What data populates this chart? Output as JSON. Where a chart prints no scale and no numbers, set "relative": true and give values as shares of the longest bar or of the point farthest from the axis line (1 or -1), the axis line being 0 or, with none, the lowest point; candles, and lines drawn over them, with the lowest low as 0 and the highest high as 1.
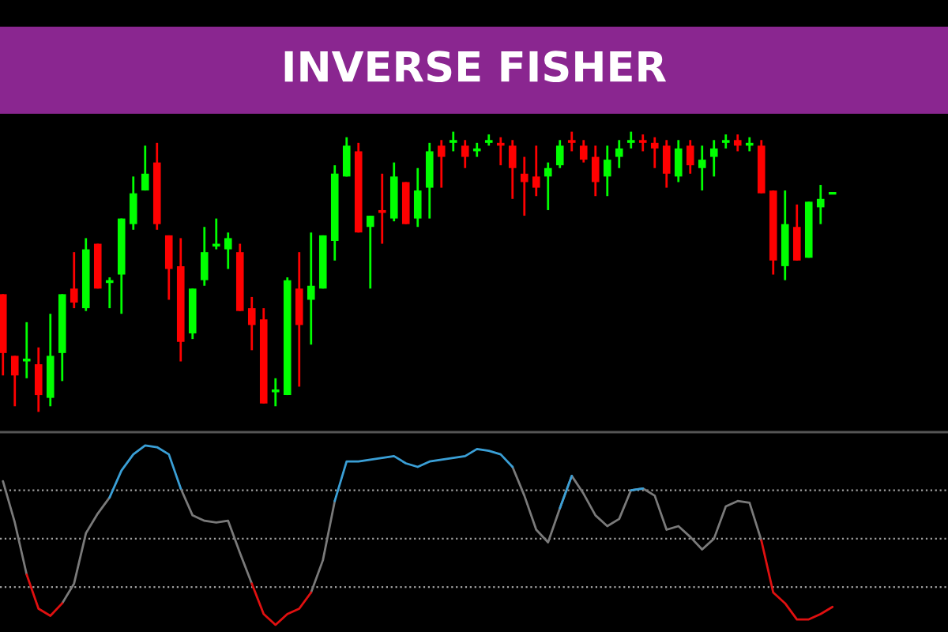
{
  "chart_data": [
    {
      "type": "candlestick",
      "title": "INVERSE FISHER",
      "relative": true,
      "categories": [
        null,
        null,
        null,
        null,
        null,
        null,
        null,
        null,
        null,
        null,
        null,
        null,
        null,
        null,
        null,
        null,
        null,
        null,
        null,
        null,
        null,
        null,
        null,
        null,
        null,
        null,
        null,
        null,
        null,
        null,
        null,
        null,
        null,
        null,
        null,
        null,
        null,
        null,
        null,
        null,
        null,
        null,
        null,
        null,
        null,
        null,
        null,
        null,
        null,
        null,
        null,
        null,
        null,
        null,
        null,
        null,
        null,
        null,
        null,
        null,
        null,
        null,
        null,
        null,
        null,
        null,
        null,
        null,
        null,
        null,
        null
      ],
      "ohlc": [
        [
          0.42,
          0.42,
          0.13,
          0.21
        ],
        [
          0.2,
          0.2,
          0.02,
          0.13
        ],
        [
          0.18,
          0.32,
          0.12,
          0.19
        ],
        [
          0.17,
          0.23,
          0.0,
          0.06
        ],
        [
          0.05,
          0.35,
          0.02,
          0.2
        ],
        [
          0.21,
          0.42,
          0.11,
          0.42
        ],
        [
          0.44,
          0.57,
          0.37,
          0.39
        ],
        [
          0.37,
          0.62,
          0.36,
          0.58
        ],
        [
          0.6,
          0.6,
          0.44,
          0.44
        ],
        [
          0.46,
          0.48,
          0.37,
          0.47
        ],
        [
          0.49,
          0.69,
          0.35,
          0.69
        ],
        [
          0.67,
          0.84,
          0.65,
          0.78
        ],
        [
          0.79,
          0.95,
          0.79,
          0.85
        ],
        [
          0.89,
          0.96,
          0.65,
          0.67
        ],
        [
          0.63,
          0.63,
          0.4,
          0.51
        ],
        [
          0.52,
          0.62,
          0.18,
          0.25
        ],
        [
          0.28,
          0.44,
          0.26,
          0.44
        ],
        [
          0.47,
          0.66,
          0.45,
          0.57
        ],
        [
          0.59,
          0.69,
          0.58,
          0.6
        ],
        [
          0.58,
          0.64,
          0.51,
          0.62
        ],
        [
          0.57,
          0.6,
          0.36,
          0.36
        ],
        [
          0.37,
          0.41,
          0.22,
          0.31
        ],
        [
          0.33,
          0.37,
          0.03,
          0.03
        ],
        [
          0.07,
          0.12,
          0.02,
          0.08
        ],
        [
          0.06,
          0.48,
          0.06,
          0.47
        ],
        [
          0.44,
          0.57,
          0.09,
          0.31
        ],
        [
          0.4,
          0.64,
          0.24,
          0.45
        ],
        [
          0.44,
          0.63,
          0.44,
          0.63
        ],
        [
          0.61,
          0.88,
          0.54,
          0.85
        ],
        [
          0.84,
          0.98,
          0.84,
          0.95
        ],
        [
          0.93,
          0.96,
          0.64,
          0.64
        ],
        [
          0.66,
          0.7,
          0.44,
          0.7
        ],
        [
          0.72,
          0.85,
          0.6,
          0.71
        ],
        [
          0.69,
          0.89,
          0.68,
          0.84
        ],
        [
          0.82,
          0.82,
          0.67,
          0.67
        ],
        [
          0.69,
          0.87,
          0.66,
          0.79
        ],
        [
          0.8,
          0.96,
          0.69,
          0.93
        ],
        [
          0.95,
          0.97,
          0.8,
          0.91
        ],
        [
          0.96,
          1.0,
          0.93,
          0.97
        ],
        [
          0.95,
          0.97,
          0.87,
          0.91
        ],
        [
          0.93,
          0.96,
          0.91,
          0.94
        ],
        [
          0.96,
          0.99,
          0.95,
          0.97
        ],
        [
          0.96,
          0.98,
          0.88,
          0.95
        ],
        [
          0.95,
          0.97,
          0.76,
          0.87
        ],
        [
          0.85,
          0.91,
          0.7,
          0.82
        ],
        [
          0.84,
          0.95,
          0.77,
          0.8
        ],
        [
          0.84,
          0.89,
          0.72,
          0.87
        ],
        [
          0.88,
          0.97,
          0.87,
          0.95
        ],
        [
          0.97,
          1.0,
          0.93,
          0.96
        ],
        [
          0.95,
          0.97,
          0.89,
          0.9
        ],
        [
          0.91,
          0.95,
          0.77,
          0.82
        ],
        [
          0.84,
          0.95,
          0.77,
          0.9
        ],
        [
          0.91,
          0.97,
          0.87,
          0.94
        ],
        [
          0.96,
          1.0,
          0.94,
          0.97
        ],
        [
          0.97,
          0.99,
          0.93,
          0.96
        ],
        [
          0.96,
          0.98,
          0.87,
          0.94
        ],
        [
          0.95,
          0.97,
          0.8,
          0.85
        ],
        [
          0.84,
          0.97,
          0.82,
          0.94
        ],
        [
          0.95,
          0.97,
          0.85,
          0.88
        ],
        [
          0.87,
          0.95,
          0.79,
          0.9
        ],
        [
          0.91,
          0.97,
          0.84,
          0.94
        ],
        [
          0.96,
          0.99,
          0.94,
          0.97
        ],
        [
          0.97,
          0.99,
          0.93,
          0.95
        ],
        [
          0.95,
          0.98,
          0.93,
          0.96
        ],
        [
          0.95,
          0.97,
          0.78,
          0.78
        ],
        [
          0.79,
          0.79,
          0.49,
          0.54
        ],
        [
          0.52,
          0.79,
          0.47,
          0.67
        ],
        [
          0.66,
          0.74,
          0.54,
          0.54
        ],
        [
          0.55,
          0.75,
          0.55,
          0.75
        ],
        [
          0.73,
          0.81,
          0.67,
          0.76
        ],
        [
          0.78,
          0.78,
          0.78,
          0.78
        ]
      ],
      "colors": [
        "#ff0000",
        "#ff0000",
        "#00ff00",
        "#ff0000",
        "#00ff00",
        "#00ff00",
        "#ff0000",
        "#00ff00",
        "#ff0000",
        "#00ff00",
        "#00ff00",
        "#00ff00",
        "#00ff00",
        "#ff0000",
        "#ff0000",
        "#ff0000",
        "#00ff00",
        "#00ff00",
        "#00ff00",
        "#00ff00",
        "#ff0000",
        "#ff0000",
        "#ff0000",
        "#00ff00",
        "#00ff00",
        "#ff0000",
        "#00ff00",
        "#00ff00",
        "#00ff00",
        "#00ff00",
        "#ff0000",
        "#00ff00",
        "#ff0000",
        "#00ff00",
        "#ff0000",
        "#00ff00",
        "#00ff00",
        "#ff0000",
        "#00ff00",
        "#ff0000",
        "#00ff00",
        "#00ff00",
        "#ff0000",
        "#ff0000",
        "#ff0000",
        "#ff0000",
        "#00ff00",
        "#00ff00",
        "#ff0000",
        "#ff0000",
        "#ff0000",
        "#00ff00",
        "#00ff00",
        "#00ff00",
        "#ff0000",
        "#ff0000",
        "#ff0000",
        "#00ff00",
        "#ff0000",
        "#00ff00",
        "#00ff00",
        "#00ff00",
        "#ff0000",
        "#00ff00",
        "#ff0000",
        "#ff0000",
        "#00ff00",
        "#ff0000",
        "#00ff00",
        "#00ff00",
        "#00ff00"
      ]
    },
    {
      "type": "line",
      "relative": true,
      "line_style": "solid",
      "categories": [
        null,
        null,
        null,
        null,
        null,
        null,
        null,
        null,
        null,
        null,
        null,
        null,
        null,
        null,
        null,
        null,
        null,
        null,
        null,
        null,
        null,
        null,
        null,
        null,
        null,
        null,
        null,
        null,
        null,
        null,
        null,
        null,
        null,
        null,
        null,
        null,
        null,
        null,
        null,
        null,
        null,
        null,
        null,
        null,
        null,
        null,
        null,
        null,
        null,
        null,
        null,
        null,
        null,
        null,
        null,
        null,
        null,
        null,
        null,
        null,
        null,
        null,
        null,
        null,
        null,
        null,
        null,
        null,
        null,
        null,
        null
      ],
      "ref_lines": [
        {
          "axis": "y",
          "value": 0.75,
          "color": "#a0a0a0",
          "line_style": "dotted"
        },
        {
          "axis": "y",
          "value": 0.48,
          "color": "#a0a0a0",
          "line_style": "dotted"
        },
        {
          "axis": "y",
          "value": 0.21,
          "color": "#a0a0a0",
          "line_style": "dotted"
        }
      ],
      "series": [
        {
          "color": "#7a7a7a",
          "values": [
            0.8,
            0.57,
            0.28,
            null,
            null,
            0.12,
            0.23,
            0.51,
            0.62,
            0.71,
            null,
            null,
            null,
            null,
            null,
            0.76,
            0.61,
            0.58,
            0.57,
            0.58,
            0.4,
            0.23,
            null,
            null,
            null,
            null,
            0.18,
            0.36,
            0.69,
            null,
            null,
            null,
            null,
            null,
            null,
            null,
            null,
            null,
            null,
            null,
            null,
            null,
            null,
            0.88,
            0.72,
            0.53,
            0.46,
            0.65,
            0.83,
            0.73,
            0.61,
            0.55,
            0.59,
            0.75,
            0.76,
            0.72,
            0.53,
            0.55,
            0.49,
            0.42,
            0.48,
            0.66,
            0.69,
            0.68,
            0.47,
            null,
            null,
            null,
            null,
            null,
            null
          ]
        },
        {
          "color": "#3a9fd6",
          "values": [
            null,
            null,
            null,
            null,
            null,
            null,
            null,
            null,
            null,
            0.71,
            0.86,
            0.95,
            1.0,
            0.99,
            0.95,
            0.76,
            null,
            null,
            null,
            null,
            null,
            null,
            null,
            null,
            null,
            null,
            null,
            null,
            0.69,
            0.91,
            0.91,
            0.92,
            0.93,
            0.94,
            0.9,
            0.88,
            0.91,
            0.92,
            0.93,
            0.94,
            0.98,
            0.97,
            0.95,
            0.88,
            null,
            null,
            null,
            0.65,
            0.83,
            null,
            null,
            null,
            null,
            0.75,
            0.76,
            null,
            null,
            null,
            null,
            null,
            null,
            null,
            null,
            null,
            null,
            null,
            null,
            null,
            null,
            null,
            null
          ]
        },
        {
          "color": "#e01010",
          "values": [
            null,
            null,
            0.28,
            0.09,
            0.05,
            0.12,
            null,
            null,
            null,
            null,
            null,
            null,
            null,
            null,
            null,
            null,
            null,
            null,
            null,
            null,
            null,
            0.23,
            0.06,
            0.0,
            0.06,
            0.09,
            0.18,
            null,
            null,
            null,
            null,
            null,
            null,
            null,
            null,
            null,
            null,
            null,
            null,
            null,
            null,
            null,
            null,
            null,
            null,
            null,
            null,
            null,
            null,
            null,
            null,
            null,
            null,
            null,
            null,
            null,
            null,
            null,
            null,
            null,
            null,
            null,
            null,
            null,
            0.47,
            0.18,
            0.12,
            0.03,
            0.03,
            0.06,
            0.1
          ]
        }
      ]
    }
  ]
}
